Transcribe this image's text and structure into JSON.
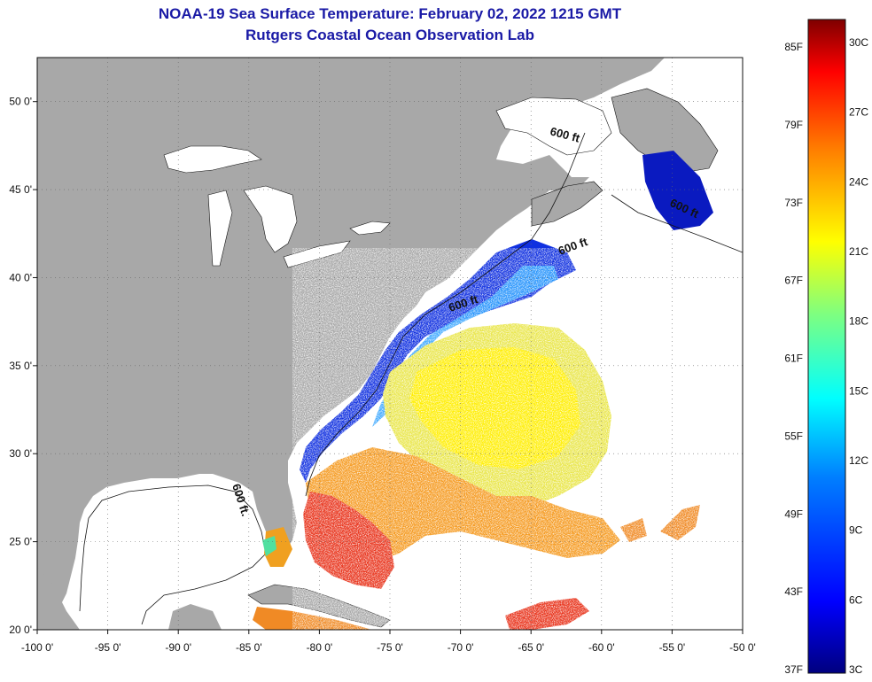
{
  "title": {
    "line1": "NOAA-19 Sea Surface Temperature:  February 02, 2022 1215 GMT",
    "line2": "Rutgers Coastal Ocean Observation Lab"
  },
  "axes": {
    "x_ticks": [
      "-100 0'",
      "-95 0'",
      "-90 0'",
      "-85 0'",
      "-80 0'",
      "-75 0'",
      "-70 0'",
      "-65 0'",
      "-60 0'",
      "-55 0'",
      "-50 0'"
    ],
    "x_values": [
      -100,
      -95,
      -90,
      -85,
      -80,
      -75,
      -70,
      -65,
      -60,
      -55,
      -50
    ],
    "y_ticks": [
      "20 0'",
      "25 0'",
      "30 0'",
      "35 0'",
      "40 0'",
      "45 0'",
      "50 0'"
    ],
    "y_values": [
      20,
      25,
      30,
      35,
      40,
      45,
      50
    ],
    "lon_range": [
      -100,
      -50
    ],
    "lat_range": [
      20,
      52.5
    ]
  },
  "contour_labels": [
    "600 ft.",
    "600 ft",
    "600 ft",
    "600 ft",
    "600 ft"
  ],
  "colorbar": {
    "fahrenheit_labels": [
      "85F",
      "79F",
      "73F",
      "67F",
      "61F",
      "55F",
      "49F",
      "43F",
      "37F"
    ],
    "celsius_labels": [
      "30C",
      "27C",
      "24C",
      "21C",
      "18C",
      "15C",
      "12C",
      "9C",
      "6C",
      "3C"
    ],
    "celsius_range": [
      3,
      31
    ],
    "colors": [
      "#00007f",
      "#0000ff",
      "#007fff",
      "#00ffff",
      "#7fff7f",
      "#ffff00",
      "#ff7f00",
      "#ff0000",
      "#7f0000"
    ]
  },
  "colors": {
    "land": "#a8a8a8",
    "ocean_nodata": "#ffffff",
    "title": "#1a1aa6"
  }
}
